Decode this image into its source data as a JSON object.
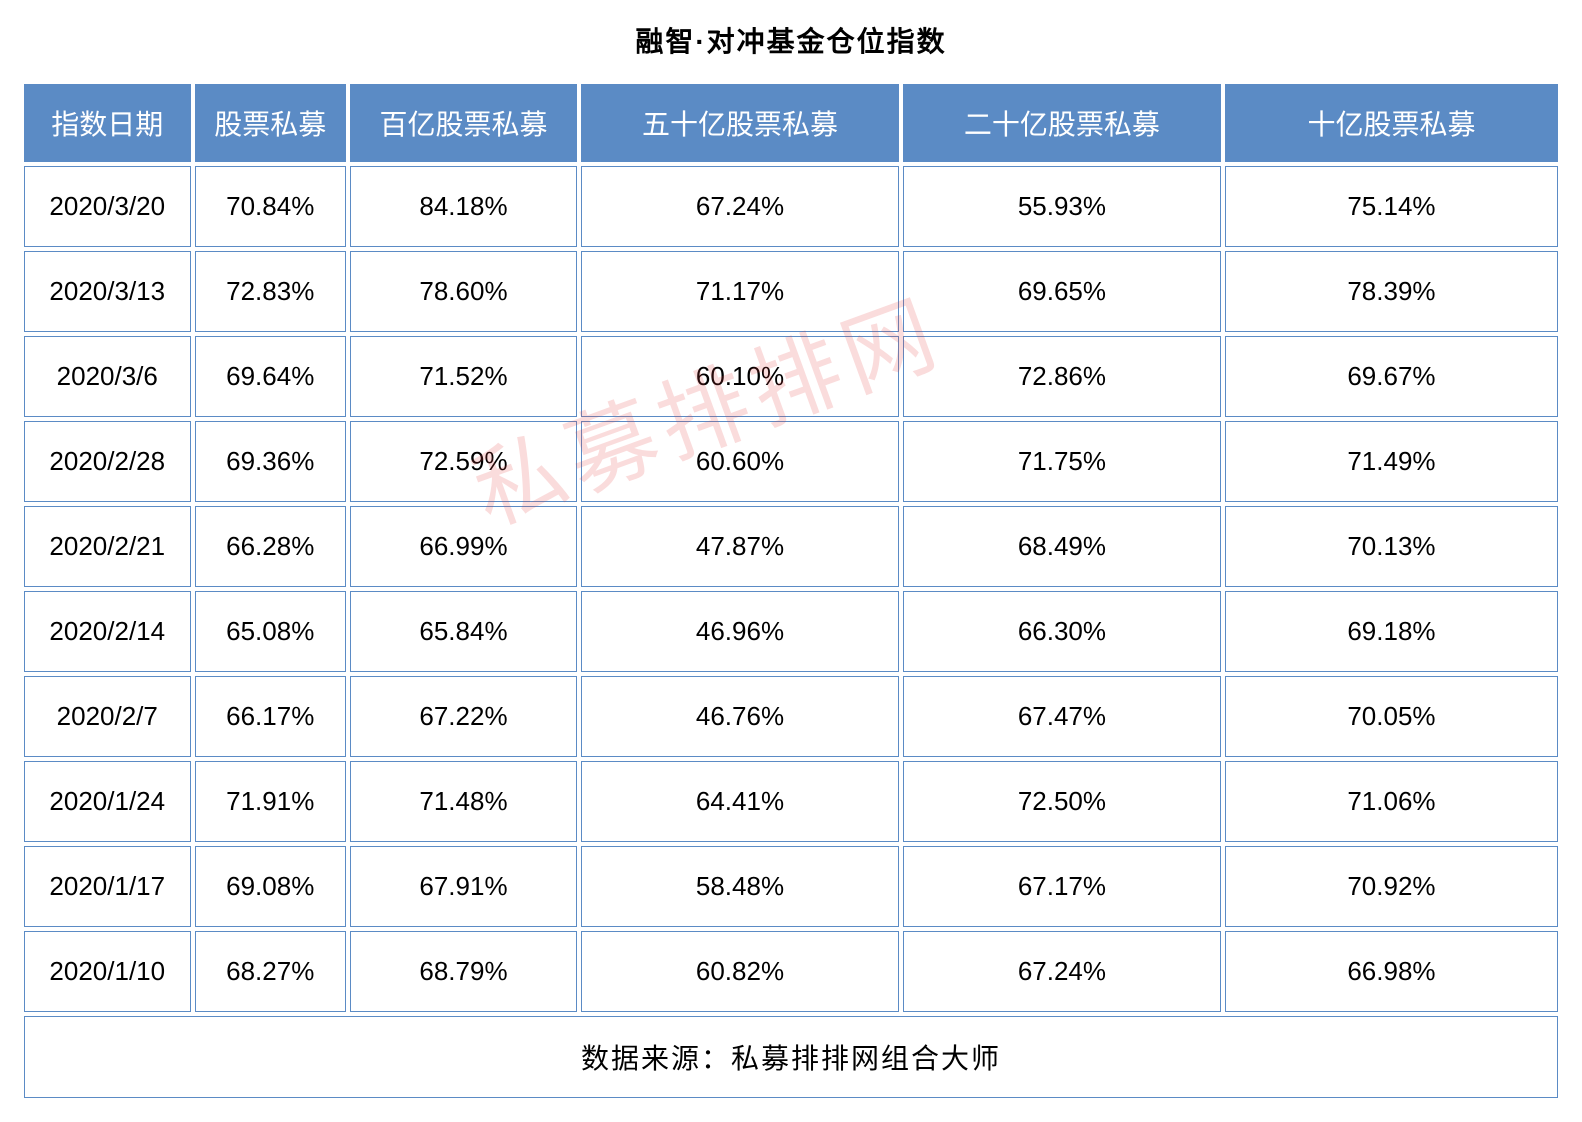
{
  "title": "融智·对冲基金仓位指数",
  "watermark": "私募排排网",
  "table": {
    "type": "table",
    "header_bg_color": "#5b8bc5",
    "header_text_color": "#ffffff",
    "cell_bg_color": "#ffffff",
    "cell_text_color": "#000000",
    "border_color": "#5b8bc5",
    "title_fontsize": 28,
    "header_fontsize": 28,
    "cell_fontsize": 26,
    "columns": [
      "指数日期",
      "股票私募",
      "百亿股票私募",
      "五十亿股票私募",
      "二十亿股票私募",
      "十亿股票私募"
    ],
    "column_widths": [
      "11%",
      "10%",
      "15%",
      "21%",
      "21%",
      "22%"
    ],
    "rows": [
      [
        "2020/3/20",
        "70.84%",
        "84.18%",
        "67.24%",
        "55.93%",
        "75.14%"
      ],
      [
        "2020/3/13",
        "72.83%",
        "78.60%",
        "71.17%",
        "69.65%",
        "78.39%"
      ],
      [
        "2020/3/6",
        "69.64%",
        "71.52%",
        "60.10%",
        "72.86%",
        "69.67%"
      ],
      [
        "2020/2/28",
        "69.36%",
        "72.59%",
        "60.60%",
        "71.75%",
        "71.49%"
      ],
      [
        "2020/2/21",
        "66.28%",
        "66.99%",
        "47.87%",
        "68.49%",
        "70.13%"
      ],
      [
        "2020/2/14",
        "65.08%",
        "65.84%",
        "46.96%",
        "66.30%",
        "69.18%"
      ],
      [
        "2020/2/7",
        "66.17%",
        "67.22%",
        "46.76%",
        "67.47%",
        "70.05%"
      ],
      [
        "2020/1/24",
        "71.91%",
        "71.48%",
        "64.41%",
        "72.50%",
        "71.06%"
      ],
      [
        "2020/1/17",
        "69.08%",
        "67.91%",
        "58.48%",
        "67.17%",
        "70.92%"
      ],
      [
        "2020/1/10",
        "68.27%",
        "68.79%",
        "60.82%",
        "67.24%",
        "66.98%"
      ]
    ],
    "footer": "数据来源：私募排排网组合大师"
  }
}
